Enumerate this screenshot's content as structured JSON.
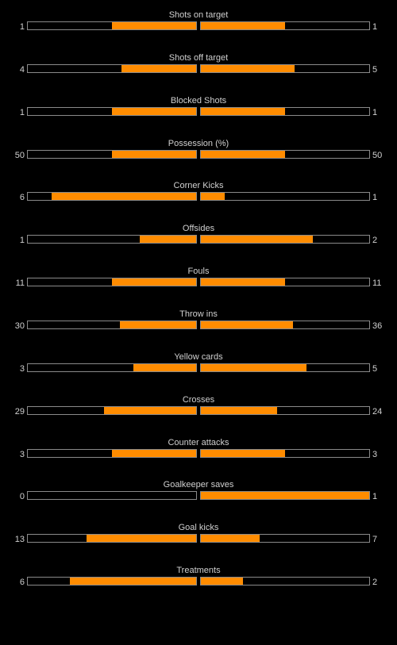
{
  "accent_color": "#ff8c00",
  "chart_data": {
    "type": "bar",
    "stats": [
      {
        "label": "Shots on target",
        "home": 1,
        "away": 1
      },
      {
        "label": "Shots off target",
        "home": 4,
        "away": 5
      },
      {
        "label": "Blocked Shots",
        "home": 1,
        "away": 1
      },
      {
        "label": "Possession (%)",
        "home": 50,
        "away": 50
      },
      {
        "label": "Corner Kicks",
        "home": 6,
        "away": 1
      },
      {
        "label": "Offsides",
        "home": 1,
        "away": 2
      },
      {
        "label": "Fouls",
        "home": 11,
        "away": 11
      },
      {
        "label": "Throw ins",
        "home": 30,
        "away": 36
      },
      {
        "label": "Yellow cards",
        "home": 3,
        "away": 5
      },
      {
        "label": "Crosses",
        "home": 29,
        "away": 24
      },
      {
        "label": "Counter attacks",
        "home": 3,
        "away": 3
      },
      {
        "label": "Goalkeeper saves",
        "home": 0,
        "away": 1
      },
      {
        "label": "Goal kicks",
        "home": 13,
        "away": 7
      },
      {
        "label": "Treatments",
        "home": 6,
        "away": 2
      }
    ]
  }
}
